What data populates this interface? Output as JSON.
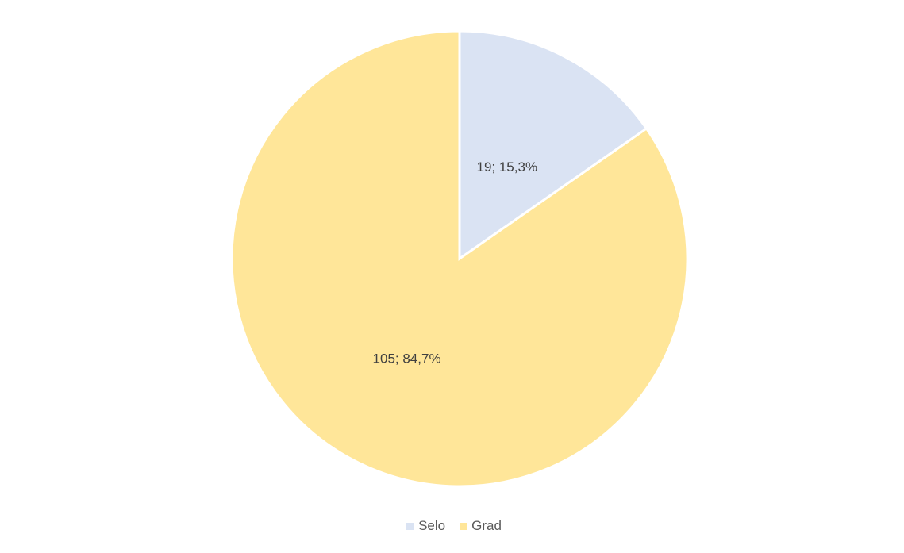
{
  "chart_data": {
    "type": "pie",
    "categories": [
      "Selo",
      "Grad"
    ],
    "values": [
      19,
      105
    ],
    "percentages": [
      "15,3%",
      "84,7%"
    ],
    "labels": [
      "19; 15,3%",
      "105; 84,7%"
    ],
    "colors": [
      "#dae3f3",
      "#ffe699"
    ],
    "start_angle_deg": 0,
    "direction": "clockwise",
    "legend": {
      "position": "bottom",
      "items": [
        "Selo",
        "Grad"
      ]
    }
  }
}
